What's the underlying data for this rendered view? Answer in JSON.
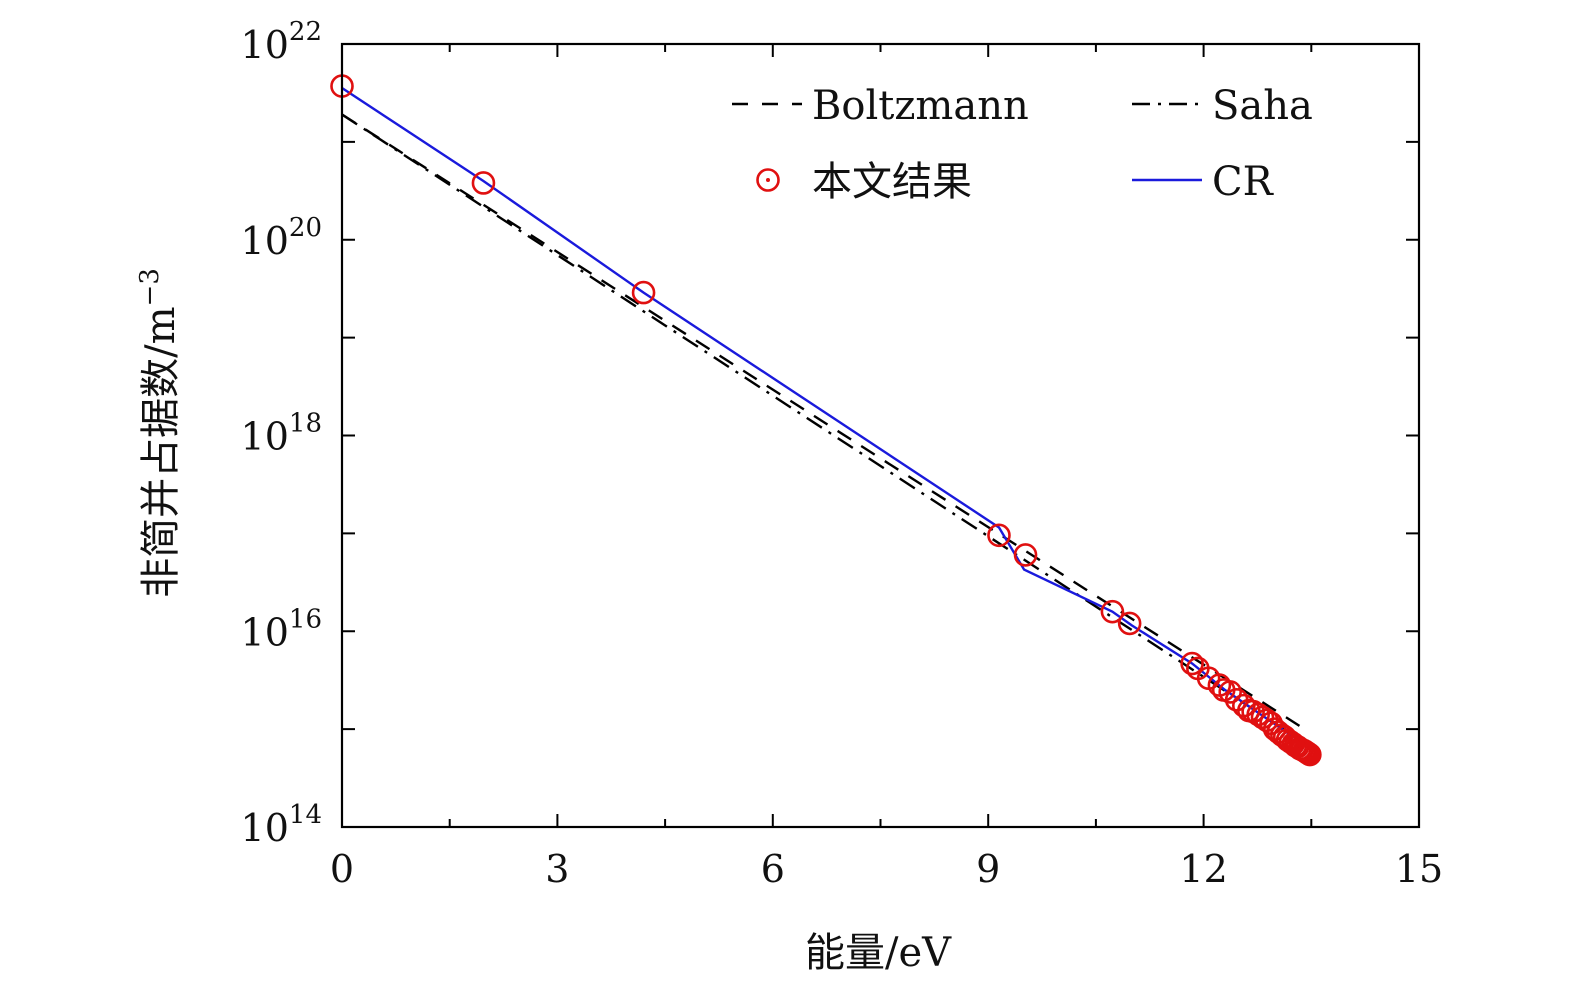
{
  "chart_data": {
    "type": "scatter",
    "title": "",
    "xlabel": "能量/eV",
    "ylabel": "非简并占据数/m",
    "ylabel_exponent": "−3",
    "xlim": [
      0,
      15
    ],
    "ylim_log10": [
      14,
      22
    ],
    "x_ticks": [
      0,
      3,
      6,
      9,
      12,
      15
    ],
    "x_tick_labels": [
      "0",
      "3",
      "6",
      "9",
      "12",
      "15"
    ],
    "y_tick_labels": [
      {
        "base": "10",
        "exp": "14"
      },
      {
        "base": "10",
        "exp": "16"
      },
      {
        "base": "10",
        "exp": "18"
      },
      {
        "base": "10",
        "exp": "20"
      },
      {
        "base": "10",
        "exp": "22"
      }
    ],
    "y_tick_exponents": [
      14,
      16,
      18,
      20,
      22
    ],
    "grid": false,
    "legend_position": "top-right",
    "series": [
      {
        "name": "Boltzmann",
        "style": "dashed",
        "color": "#000000",
        "x": [
          0,
          13.45
        ],
        "log10_y": [
          21.28,
          14.98
        ]
      },
      {
        "name": "Saha",
        "style": "dashdot",
        "color": "#000000",
        "x": [
          0,
          13.45
        ],
        "log10_y": [
          21.28,
          14.84
        ]
      },
      {
        "name": "本文结果",
        "style": "circle-markers",
        "color": "#e01010",
        "x": [
          0,
          1.97,
          4.2,
          9.15,
          9.52,
          10.73,
          10.97,
          11.84,
          11.92,
          12.07,
          12.22,
          12.28,
          12.37,
          12.46,
          12.56,
          12.63,
          12.69,
          12.76,
          12.82,
          12.88,
          12.94,
          12.99,
          13.04,
          13.09,
          13.13,
          13.17,
          13.21,
          13.25,
          13.28,
          13.31,
          13.34,
          13.37,
          13.4,
          13.42,
          13.44,
          13.46,
          13.48
        ],
        "log10_y": [
          21.57,
          20.58,
          19.46,
          16.98,
          16.78,
          16.2,
          16.08,
          15.67,
          15.62,
          15.52,
          15.45,
          15.4,
          15.38,
          15.3,
          15.24,
          15.19,
          15.18,
          15.15,
          15.12,
          15.09,
          15.06,
          15.0,
          14.97,
          14.94,
          14.92,
          14.89,
          14.87,
          14.85,
          14.83,
          14.82,
          14.8,
          14.79,
          14.78,
          14.77,
          14.76,
          14.75,
          14.74
        ]
      },
      {
        "name": "CR",
        "style": "solid",
        "color": "#1a1adc",
        "x": [
          0,
          1.97,
          4.2,
          9.15,
          9.5,
          10.73,
          11.0,
          11.84,
          12.3,
          13.45
        ],
        "log10_y": [
          21.55,
          20.6,
          19.46,
          17.06,
          16.63,
          16.2,
          16.06,
          15.67,
          15.4,
          14.82
        ]
      }
    ]
  }
}
